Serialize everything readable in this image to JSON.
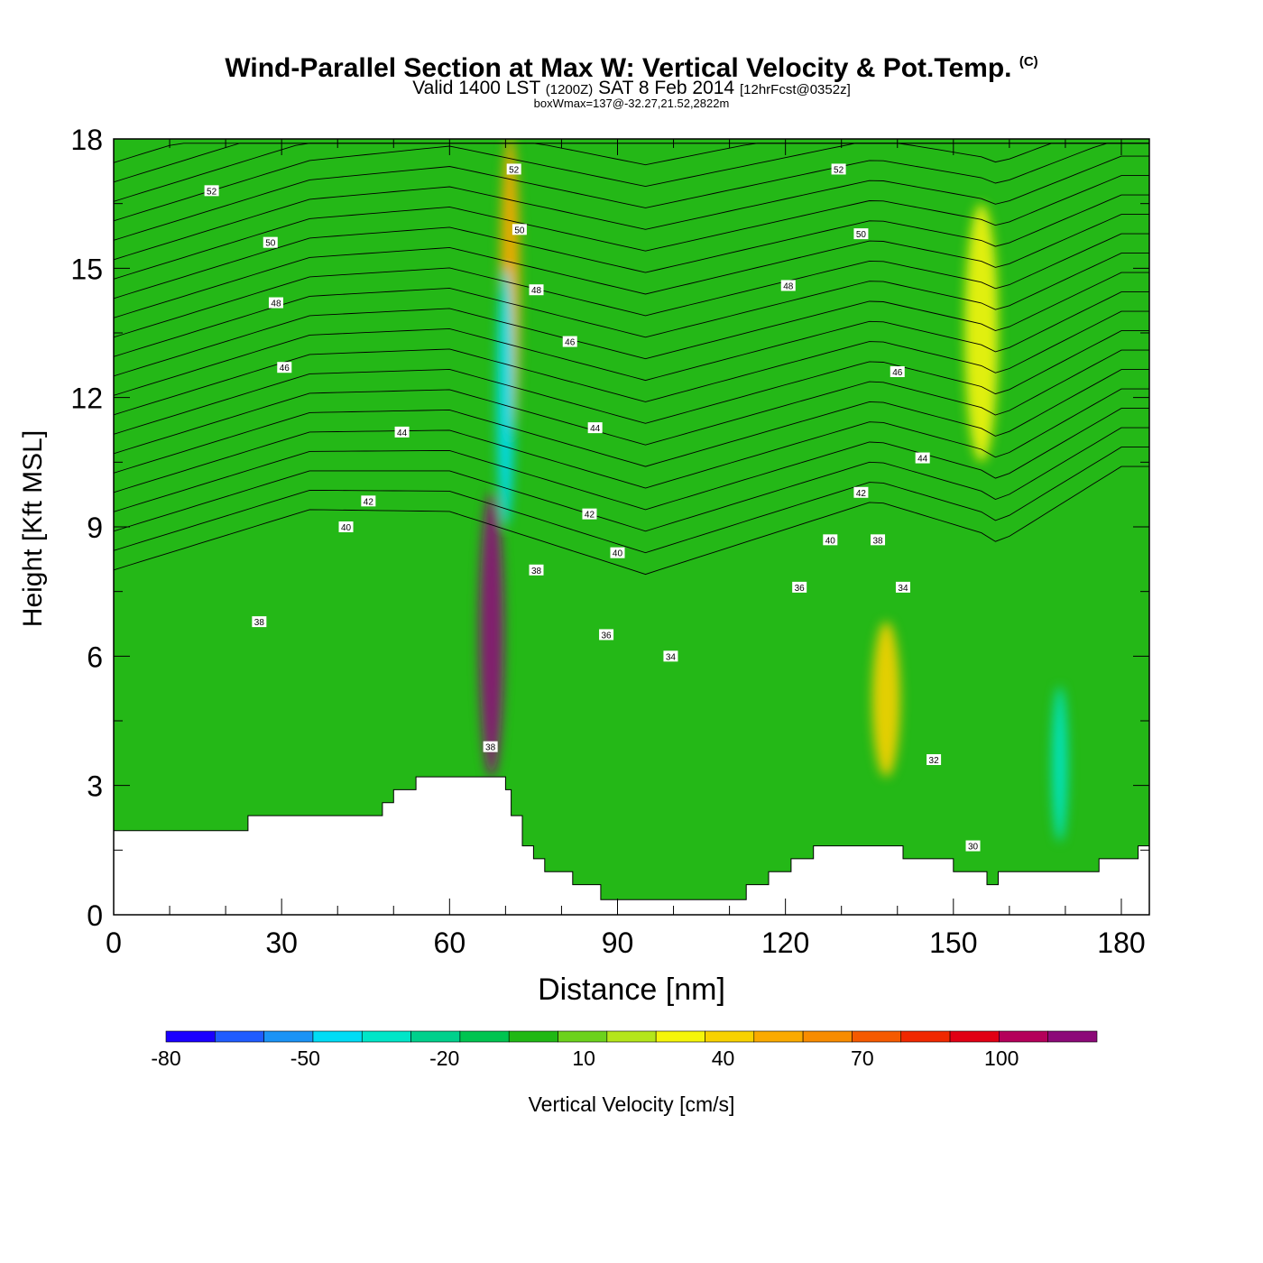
{
  "title": "Wind-Parallel Section at Max W: Vertical Velocity & Pot.Temp.",
  "title_mark": "(C)",
  "subtitle_main": "Valid 1400 LST",
  "subtitle_utc": "(1200Z)",
  "subtitle_date": "SAT 8 Feb 2014",
  "subtitle_fcst": "[12hrFcst@0352z]",
  "subtitle_note": "boxWmax=137@-32.27,21.52,2822m",
  "chart_data": {
    "type": "heatmap",
    "xlabel": "Distance [nm]",
    "ylabel": "Height [Kft MSL]",
    "xlim": [
      0,
      185
    ],
    "ylim": [
      0,
      18
    ],
    "x_ticks": [
      "0",
      "30",
      "60",
      "90",
      "120",
      "150",
      "180"
    ],
    "y_ticks": [
      "0",
      "3",
      "6",
      "9",
      "12",
      "15",
      "18"
    ],
    "colorbar_label": "Vertical Velocity [cm/s]",
    "colorbar_ticks": [
      "-80",
      "-50",
      "-20",
      "10",
      "40",
      "70",
      "100"
    ],
    "colorbar_levels": [
      -80,
      -70,
      -60,
      -50,
      -40,
      -30,
      -20,
      -10,
      0,
      10,
      20,
      30,
      40,
      50,
      60,
      70,
      80,
      90,
      100,
      110,
      120
    ],
    "colorbar_colors": [
      "#1a00ff",
      "#1f5cff",
      "#1a93f5",
      "#00dcf5",
      "#00e6c8",
      "#00d08c",
      "#00c450",
      "#20b814",
      "#6cd21c",
      "#b4e61a",
      "#f5f50a",
      "#f8d200",
      "#faaa00",
      "#f88c00",
      "#f55a00",
      "#f02800",
      "#e10014",
      "#b4005a",
      "#8c0a78"
    ],
    "background_color": "#24b817",
    "terrain_profile": [
      [
        0,
        1.95
      ],
      [
        24,
        1.95
      ],
      [
        24,
        2.3
      ],
      [
        48,
        2.3
      ],
      [
        48,
        2.6
      ],
      [
        50,
        2.6
      ],
      [
        50,
        2.9
      ],
      [
        54,
        2.9
      ],
      [
        54,
        3.2
      ],
      [
        70,
        3.2
      ],
      [
        70,
        2.9
      ],
      [
        71,
        2.9
      ],
      [
        71,
        2.3
      ],
      [
        73,
        2.3
      ],
      [
        73,
        1.6
      ],
      [
        75,
        1.6
      ],
      [
        75,
        1.3
      ],
      [
        77,
        1.3
      ],
      [
        77,
        1.0
      ],
      [
        82,
        1.0
      ],
      [
        82,
        0.7
      ],
      [
        87,
        0.7
      ],
      [
        87,
        0.35
      ],
      [
        113,
        0.35
      ],
      [
        113,
        0.7
      ],
      [
        117,
        0.7
      ],
      [
        117,
        1.0
      ],
      [
        121,
        1.0
      ],
      [
        121,
        1.3
      ],
      [
        125,
        1.3
      ],
      [
        125,
        1.6
      ],
      [
        141,
        1.6
      ],
      [
        141,
        1.3
      ],
      [
        150,
        1.3
      ],
      [
        150,
        1.0
      ],
      [
        156,
        1.0
      ],
      [
        156,
        0.7
      ],
      [
        158,
        0.7
      ],
      [
        158,
        1.0
      ],
      [
        176,
        1.0
      ],
      [
        176,
        1.3
      ],
      [
        183,
        1.3
      ],
      [
        183,
        1.6
      ],
      [
        185,
        1.6
      ]
    ],
    "features": [
      {
        "name": "updraft-core",
        "x": 67.5,
        "y": 6.5,
        "rx": 2.2,
        "ry": 3.3,
        "value": 120
      },
      {
        "name": "updraft-tail",
        "x": 70.8,
        "y": 14.5,
        "rx": 1.8,
        "ry": 3.6,
        "value": 40
      },
      {
        "name": "downdraft-band",
        "x": 70.0,
        "y": 12.0,
        "rx": 1.6,
        "ry": 3.0,
        "value": -50
      },
      {
        "name": "downdraft-east",
        "x": 169.0,
        "y": 3.5,
        "rx": 1.4,
        "ry": 1.8,
        "value": -40
      },
      {
        "name": "yellow-band-east",
        "x": 155.0,
        "y": 13.5,
        "rx": 3.0,
        "ry": 3.0,
        "value": 25
      },
      {
        "name": "yellow-patch-mid",
        "x": 138.0,
        "y": 5.0,
        "rx": 2.5,
        "ry": 1.8,
        "value": 30
      }
    ],
    "contour_labels": [
      {
        "text": "52",
        "x": 17.5,
        "y": 16.8
      },
      {
        "text": "50",
        "x": 28.0,
        "y": 15.6
      },
      {
        "text": "48",
        "x": 29.0,
        "y": 14.2
      },
      {
        "text": "46",
        "x": 30.5,
        "y": 12.7
      },
      {
        "text": "44",
        "x": 51.5,
        "y": 11.2
      },
      {
        "text": "42",
        "x": 45.5,
        "y": 9.6
      },
      {
        "text": "40",
        "x": 41.5,
        "y": 9.0
      },
      {
        "text": "38",
        "x": 26.0,
        "y": 6.8
      },
      {
        "text": "38",
        "x": 67.3,
        "y": 3.9
      },
      {
        "text": "52",
        "x": 71.5,
        "y": 17.3
      },
      {
        "text": "50",
        "x": 72.5,
        "y": 15.9
      },
      {
        "text": "48",
        "x": 75.5,
        "y": 14.5
      },
      {
        "text": "46",
        "x": 81.5,
        "y": 13.3
      },
      {
        "text": "44",
        "x": 86.0,
        "y": 11.3
      },
      {
        "text": "42",
        "x": 85.0,
        "y": 9.3
      },
      {
        "text": "40",
        "x": 90.0,
        "y": 8.4
      },
      {
        "text": "38",
        "x": 75.5,
        "y": 8.0
      },
      {
        "text": "36",
        "x": 88.0,
        "y": 6.5
      },
      {
        "text": "34",
        "x": 99.5,
        "y": 6.0
      },
      {
        "text": "52",
        "x": 129.5,
        "y": 17.3
      },
      {
        "text": "50",
        "x": 133.5,
        "y": 15.8
      },
      {
        "text": "48",
        "x": 120.5,
        "y": 14.6
      },
      {
        "text": "46",
        "x": 140.0,
        "y": 12.6
      },
      {
        "text": "44",
        "x": 144.5,
        "y": 10.6
      },
      {
        "text": "42",
        "x": 133.5,
        "y": 9.8
      },
      {
        "text": "40",
        "x": 128.0,
        "y": 8.7
      },
      {
        "text": "38",
        "x": 136.5,
        "y": 8.7
      },
      {
        "text": "36",
        "x": 122.5,
        "y": 7.6
      },
      {
        "text": "34",
        "x": 141.0,
        "y": 7.6
      },
      {
        "text": "32",
        "x": 146.5,
        "y": 3.6
      },
      {
        "text": "30",
        "x": 153.5,
        "y": 1.6
      }
    ]
  }
}
